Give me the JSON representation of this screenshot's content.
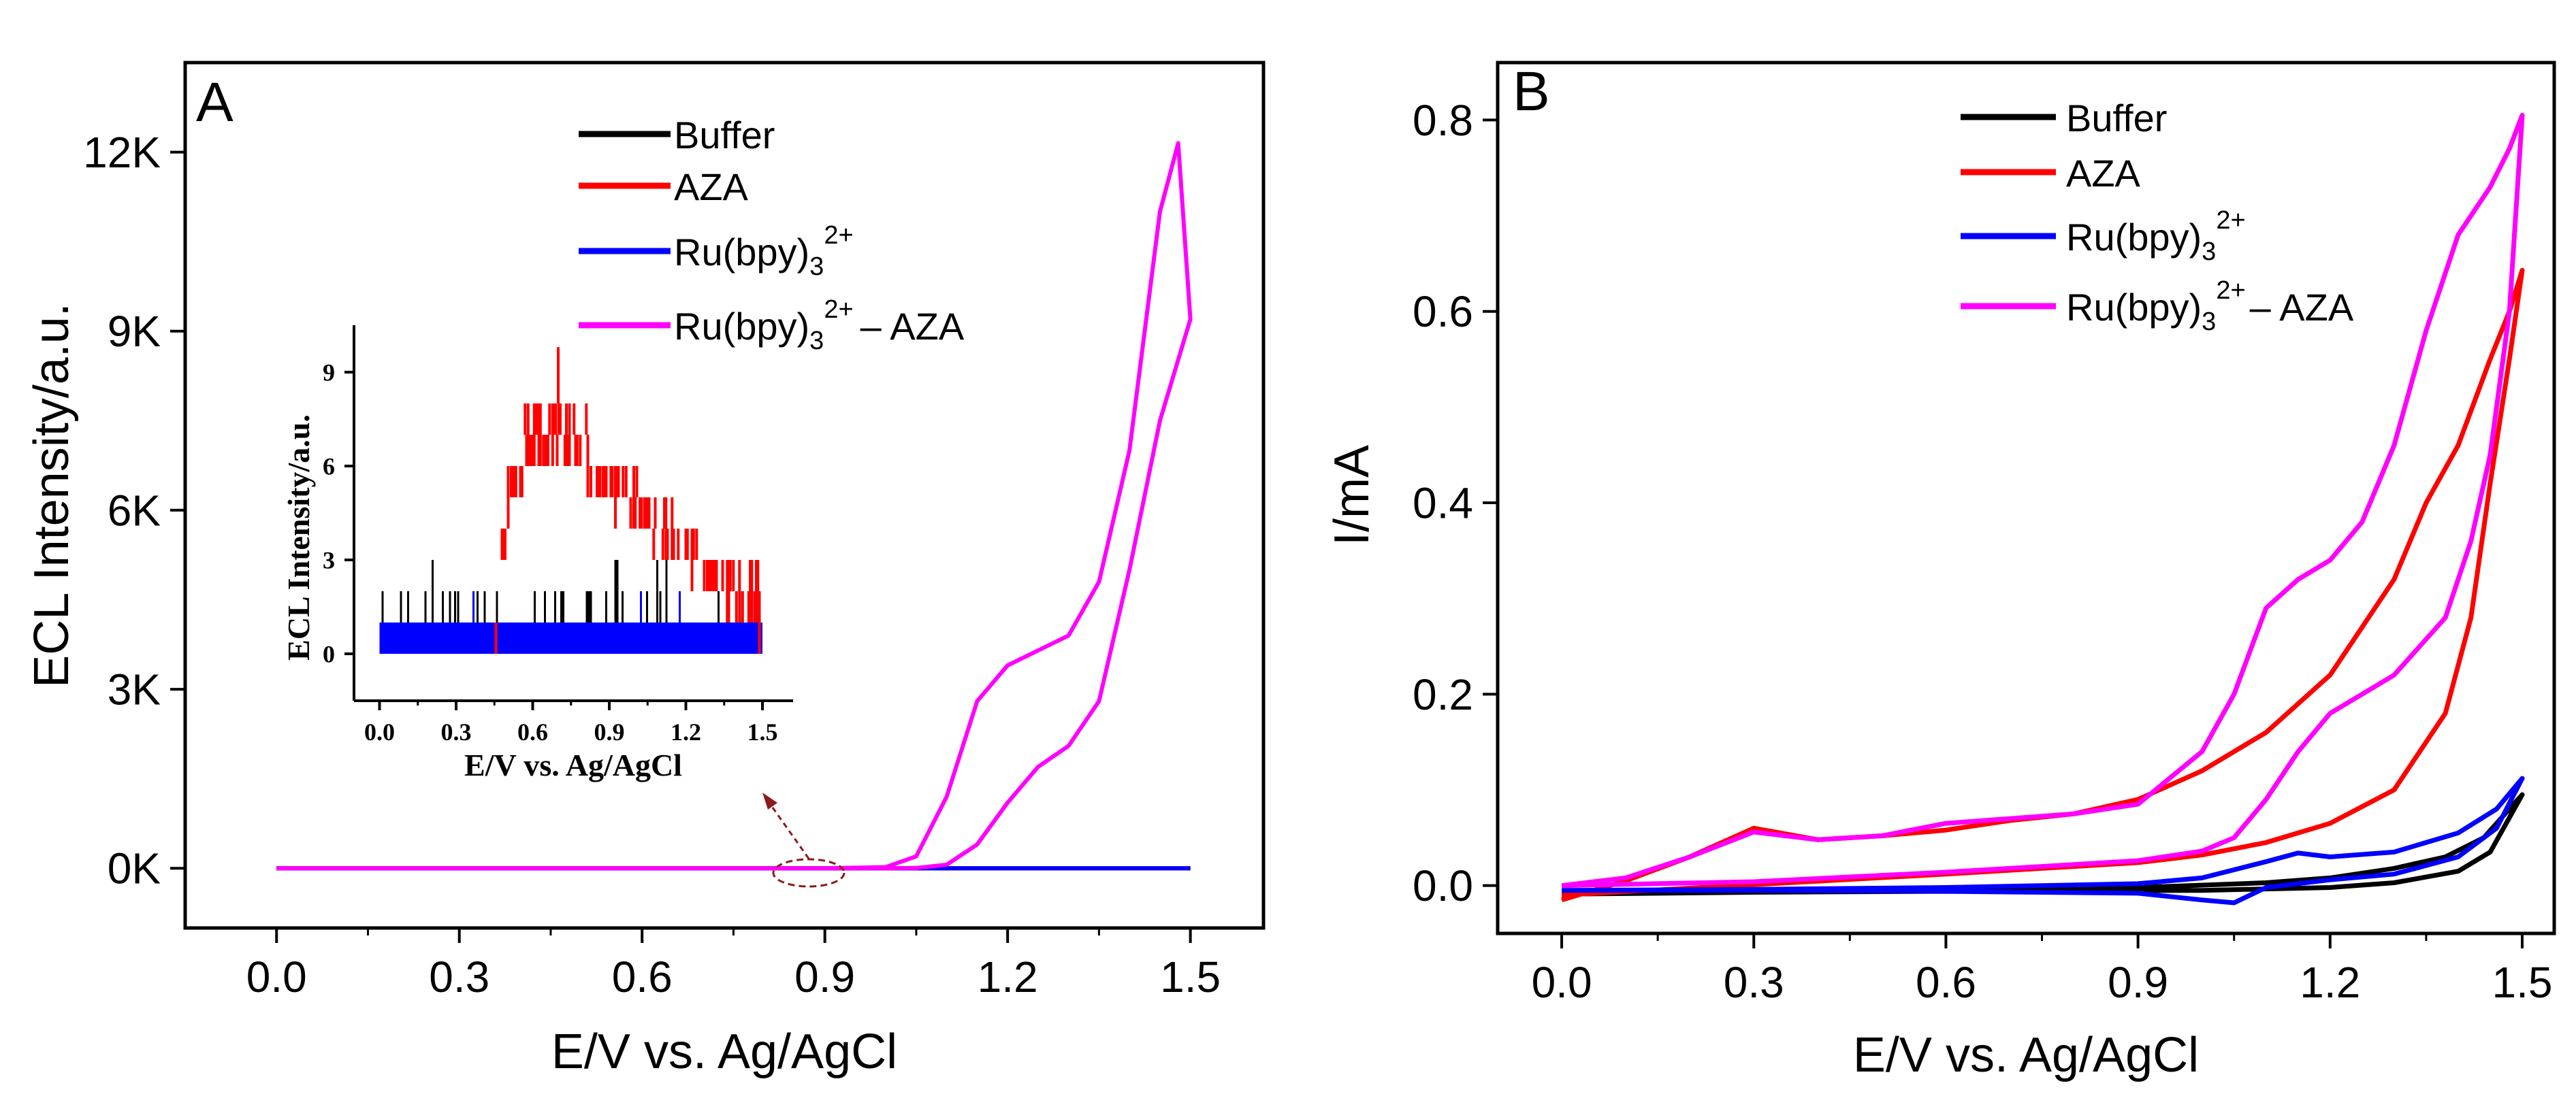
{
  "chart_data": [
    {
      "type": "line",
      "panel_label": "A",
      "xlabel": "E/V vs. Ag/AgCl",
      "ylabel": "ECL Intensity/a.u.",
      "xlim": [
        -0.15,
        1.62
      ],
      "ylim": [
        -1000,
        13500
      ],
      "xticks": [
        0.0,
        0.3,
        0.6,
        0.9,
        1.2,
        1.5
      ],
      "xtick_labels": [
        "0.0",
        "0.3",
        "0.6",
        "0.9",
        "1.2",
        "1.5"
      ],
      "yticks": [
        0,
        3000,
        6000,
        9000,
        12000
      ],
      "ytick_labels": [
        "0K",
        "3K",
        "6K",
        "9K",
        "12K"
      ],
      "legend": [
        {
          "label": "Buffer",
          "color": "#000000"
        },
        {
          "label": "AZA",
          "color": "#ff0000"
        },
        {
          "label_base": "Ru(bpy)",
          "label_sub": "3",
          "label_sup": "2+",
          "label_tail": "",
          "color": "#0000ff"
        },
        {
          "label_base": "Ru(bpy)",
          "label_sub": "3",
          "label_sup": "2+",
          "label_tail": "–  AZA",
          "color": "#ff00ff"
        }
      ],
      "series": [
        {
          "name": "Buffer",
          "color": "#000000",
          "points": [
            [
              0,
              0
            ],
            [
              1.5,
              0
            ]
          ]
        },
        {
          "name": "AZA",
          "color": "#ff0000",
          "points": [
            [
              0,
              0
            ],
            [
              1.5,
              0
            ]
          ]
        },
        {
          "name": "Ru(bpy)3 2+",
          "color": "#0000ff",
          "points": [
            [
              0,
              0
            ],
            [
              1.5,
              0
            ]
          ]
        },
        {
          "name": "Ru(bpy)3 2+ - AZA",
          "color": "#ff00ff",
          "points": [
            [
              0,
              0
            ],
            [
              0.9,
              0
            ],
            [
              1.0,
              20
            ],
            [
              1.05,
              200
            ],
            [
              1.1,
              1200
            ],
            [
              1.15,
              2800
            ],
            [
              1.2,
              3400
            ],
            [
              1.25,
              3650
            ],
            [
              1.3,
              3900
            ],
            [
              1.35,
              4800
            ],
            [
              1.4,
              7000
            ],
            [
              1.45,
              11000
            ],
            [
              1.48,
              12150
            ],
            [
              1.5,
              9200
            ],
            [
              1.45,
              7500
            ],
            [
              1.4,
              5000
            ],
            [
              1.35,
              2800
            ],
            [
              1.3,
              2050
            ],
            [
              1.25,
              1700
            ],
            [
              1.2,
              1100
            ],
            [
              1.15,
              400
            ],
            [
              1.1,
              60
            ],
            [
              1.05,
              5
            ],
            [
              1.0,
              0
            ],
            [
              0.9,
              0
            ],
            [
              0.0,
              0
            ]
          ]
        }
      ],
      "annotation": "dashed ellipse near 0.9 V linking to inset",
      "inset": {
        "xlabel": "E/V vs. Ag/AgCl",
        "ylabel": "ECL Intensity/a.u.",
        "xlim": [
          -0.1,
          1.62
        ],
        "ylim": [
          -1.5,
          10.5
        ],
        "xticks": [
          0.0,
          0.3,
          0.6,
          0.9,
          1.2,
          1.5
        ],
        "xtick_labels": [
          "0.0",
          "0.3",
          "0.6",
          "0.9",
          "1.2",
          "1.5"
        ],
        "yticks": [
          0,
          3,
          6,
          9
        ],
        "ytick_labels": [
          "0",
          "3",
          "6",
          "9"
        ],
        "series": [
          {
            "name": "AZA",
            "color": "#ff0000",
            "envelope": [
              [
                0.45,
                0
              ],
              [
                0.5,
                6
              ],
              [
                0.55,
                7.5
              ],
              [
                0.6,
                8
              ],
              [
                0.7,
                8.3
              ],
              [
                0.8,
                7.8
              ],
              [
                0.9,
                6.5
              ],
              [
                1.0,
                6
              ],
              [
                1.1,
                5
              ],
              [
                1.2,
                4.5
              ],
              [
                1.3,
                3.5
              ],
              [
                1.4,
                2.8
              ],
              [
                1.5,
                2.8
              ]
            ],
            "lower": [
              [
                0.45,
                0
              ],
              [
                0.5,
                3
              ],
              [
                0.55,
                5
              ],
              [
                0.6,
                5.5
              ],
              [
                0.7,
                6
              ],
              [
                0.8,
                5.5
              ],
              [
                0.9,
                4.5
              ],
              [
                1.0,
                4
              ],
              [
                1.1,
                3
              ],
              [
                1.2,
                2.5
              ],
              [
                1.3,
                1.5
              ],
              [
                1.4,
                1
              ],
              [
                1.5,
                0
              ]
            ]
          },
          {
            "name": "Buffer",
            "color": "#000000",
            "band": [
              0,
              2
            ]
          },
          {
            "name": "Ru(bpy)3 2+",
            "color": "#0000ff",
            "band": [
              0,
              1
            ]
          }
        ]
      }
    },
    {
      "type": "line",
      "panel_label": "B",
      "xlabel": "E/V vs. Ag/AgCl",
      "ylabel": "I/mA",
      "xlim": [
        -0.1,
        1.55
      ],
      "ylim": [
        -0.05,
        0.86
      ],
      "xticks": [
        0.0,
        0.3,
        0.6,
        0.9,
        1.2,
        1.5
      ],
      "xtick_labels": [
        "0.0",
        "0.3",
        "0.6",
        "0.9",
        "1.2",
        "1.5"
      ],
      "yticks": [
        0.0,
        0.2,
        0.4,
        0.6,
        0.8
      ],
      "ytick_labels": [
        "0.0",
        "0.2",
        "0.4",
        "0.6",
        "0.8"
      ],
      "legend": [
        {
          "label": "Buffer",
          "color": "#000000"
        },
        {
          "label": "AZA",
          "color": "#ff0000"
        },
        {
          "label_base": "Ru(bpy)",
          "label_sub": "3",
          "label_sup": "2+",
          "label_tail": "",
          "color": "#0000ff"
        },
        {
          "label_base": "Ru(bpy)",
          "label_sub": "3",
          "label_sup": "2+",
          "label_tail": "– AZA",
          "color": "#ff00ff"
        }
      ],
      "series": [
        {
          "name": "Buffer",
          "color": "#000000",
          "points": [
            [
              0,
              -0.008
            ],
            [
              0.3,
              -0.005
            ],
            [
              0.6,
              -0.004
            ],
            [
              0.9,
              -0.002
            ],
            [
              1.1,
              0.003
            ],
            [
              1.2,
              0.008
            ],
            [
              1.3,
              0.018
            ],
            [
              1.38,
              0.03
            ],
            [
              1.44,
              0.05
            ],
            [
              1.5,
              0.095
            ],
            [
              1.45,
              0.035
            ],
            [
              1.4,
              0.015
            ],
            [
              1.3,
              0.003
            ],
            [
              1.2,
              -0.002
            ],
            [
              1.0,
              -0.005
            ],
            [
              0.6,
              -0.006
            ],
            [
              0.3,
              -0.007
            ],
            [
              0,
              -0.009
            ]
          ]
        },
        {
          "name": "AZA",
          "color": "#ff0000",
          "points": [
            [
              0,
              -0.015
            ],
            [
              0.1,
              0.005
            ],
            [
              0.2,
              0.03
            ],
            [
              0.3,
              0.06
            ],
            [
              0.4,
              0.048
            ],
            [
              0.5,
              0.052
            ],
            [
              0.6,
              0.058
            ],
            [
              0.7,
              0.068
            ],
            [
              0.8,
              0.075
            ],
            [
              0.9,
              0.09
            ],
            [
              1.0,
              0.12
            ],
            [
              1.1,
              0.16
            ],
            [
              1.2,
              0.22
            ],
            [
              1.3,
              0.32
            ],
            [
              1.35,
              0.4
            ],
            [
              1.4,
              0.46
            ],
            [
              1.45,
              0.55
            ],
            [
              1.48,
              0.6
            ],
            [
              1.5,
              0.643
            ],
            [
              1.48,
              0.55
            ],
            [
              1.45,
              0.42
            ],
            [
              1.42,
              0.28
            ],
            [
              1.38,
              0.18
            ],
            [
              1.3,
              0.1
            ],
            [
              1.2,
              0.065
            ],
            [
              1.1,
              0.045
            ],
            [
              1.0,
              0.032
            ],
            [
              0.9,
              0.024
            ],
            [
              0.6,
              0.012
            ],
            [
              0.3,
              0.001
            ],
            [
              0.0,
              -0.01
            ]
          ]
        },
        {
          "name": "Ru(bpy)3 2+",
          "color": "#0000ff",
          "points": [
            [
              0,
              -0.005
            ],
            [
              0.3,
              -0.004
            ],
            [
              0.6,
              -0.002
            ],
            [
              0.9,
              0.002
            ],
            [
              1.0,
              0.008
            ],
            [
              1.1,
              0.025
            ],
            [
              1.15,
              0.034
            ],
            [
              1.2,
              0.03
            ],
            [
              1.3,
              0.035
            ],
            [
              1.4,
              0.055
            ],
            [
              1.46,
              0.08
            ],
            [
              1.5,
              0.112
            ],
            [
              1.46,
              0.06
            ],
            [
              1.4,
              0.03
            ],
            [
              1.3,
              0.012
            ],
            [
              1.2,
              0.006
            ],
            [
              1.1,
              -0.002
            ],
            [
              1.05,
              -0.018
            ],
            [
              1.0,
              -0.015
            ],
            [
              0.9,
              -0.008
            ],
            [
              0.6,
              -0.006
            ],
            [
              0.3,
              -0.005
            ],
            [
              0.0,
              -0.005
            ]
          ]
        },
        {
          "name": "Ru(bpy)3 2+ - AZA",
          "color": "#ff00ff",
          "points": [
            [
              0,
              0.0
            ],
            [
              0.1,
              0.008
            ],
            [
              0.2,
              0.03
            ],
            [
              0.3,
              0.056
            ],
            [
              0.4,
              0.048
            ],
            [
              0.5,
              0.052
            ],
            [
              0.6,
              0.065
            ],
            [
              0.7,
              0.07
            ],
            [
              0.8,
              0.075
            ],
            [
              0.9,
              0.085
            ],
            [
              1.0,
              0.14
            ],
            [
              1.05,
              0.2
            ],
            [
              1.1,
              0.29
            ],
            [
              1.15,
              0.32
            ],
            [
              1.2,
              0.34
            ],
            [
              1.25,
              0.38
            ],
            [
              1.3,
              0.46
            ],
            [
              1.35,
              0.58
            ],
            [
              1.4,
              0.68
            ],
            [
              1.45,
              0.73
            ],
            [
              1.48,
              0.77
            ],
            [
              1.5,
              0.805
            ],
            [
              1.48,
              0.6
            ],
            [
              1.45,
              0.45
            ],
            [
              1.42,
              0.36
            ],
            [
              1.38,
              0.28
            ],
            [
              1.3,
              0.22
            ],
            [
              1.2,
              0.18
            ],
            [
              1.15,
              0.14
            ],
            [
              1.1,
              0.09
            ],
            [
              1.05,
              0.05
            ],
            [
              1.0,
              0.036
            ],
            [
              0.9,
              0.026
            ],
            [
              0.6,
              0.014
            ],
            [
              0.3,
              0.004
            ],
            [
              0.0,
              0.0
            ]
          ]
        }
      ]
    }
  ]
}
